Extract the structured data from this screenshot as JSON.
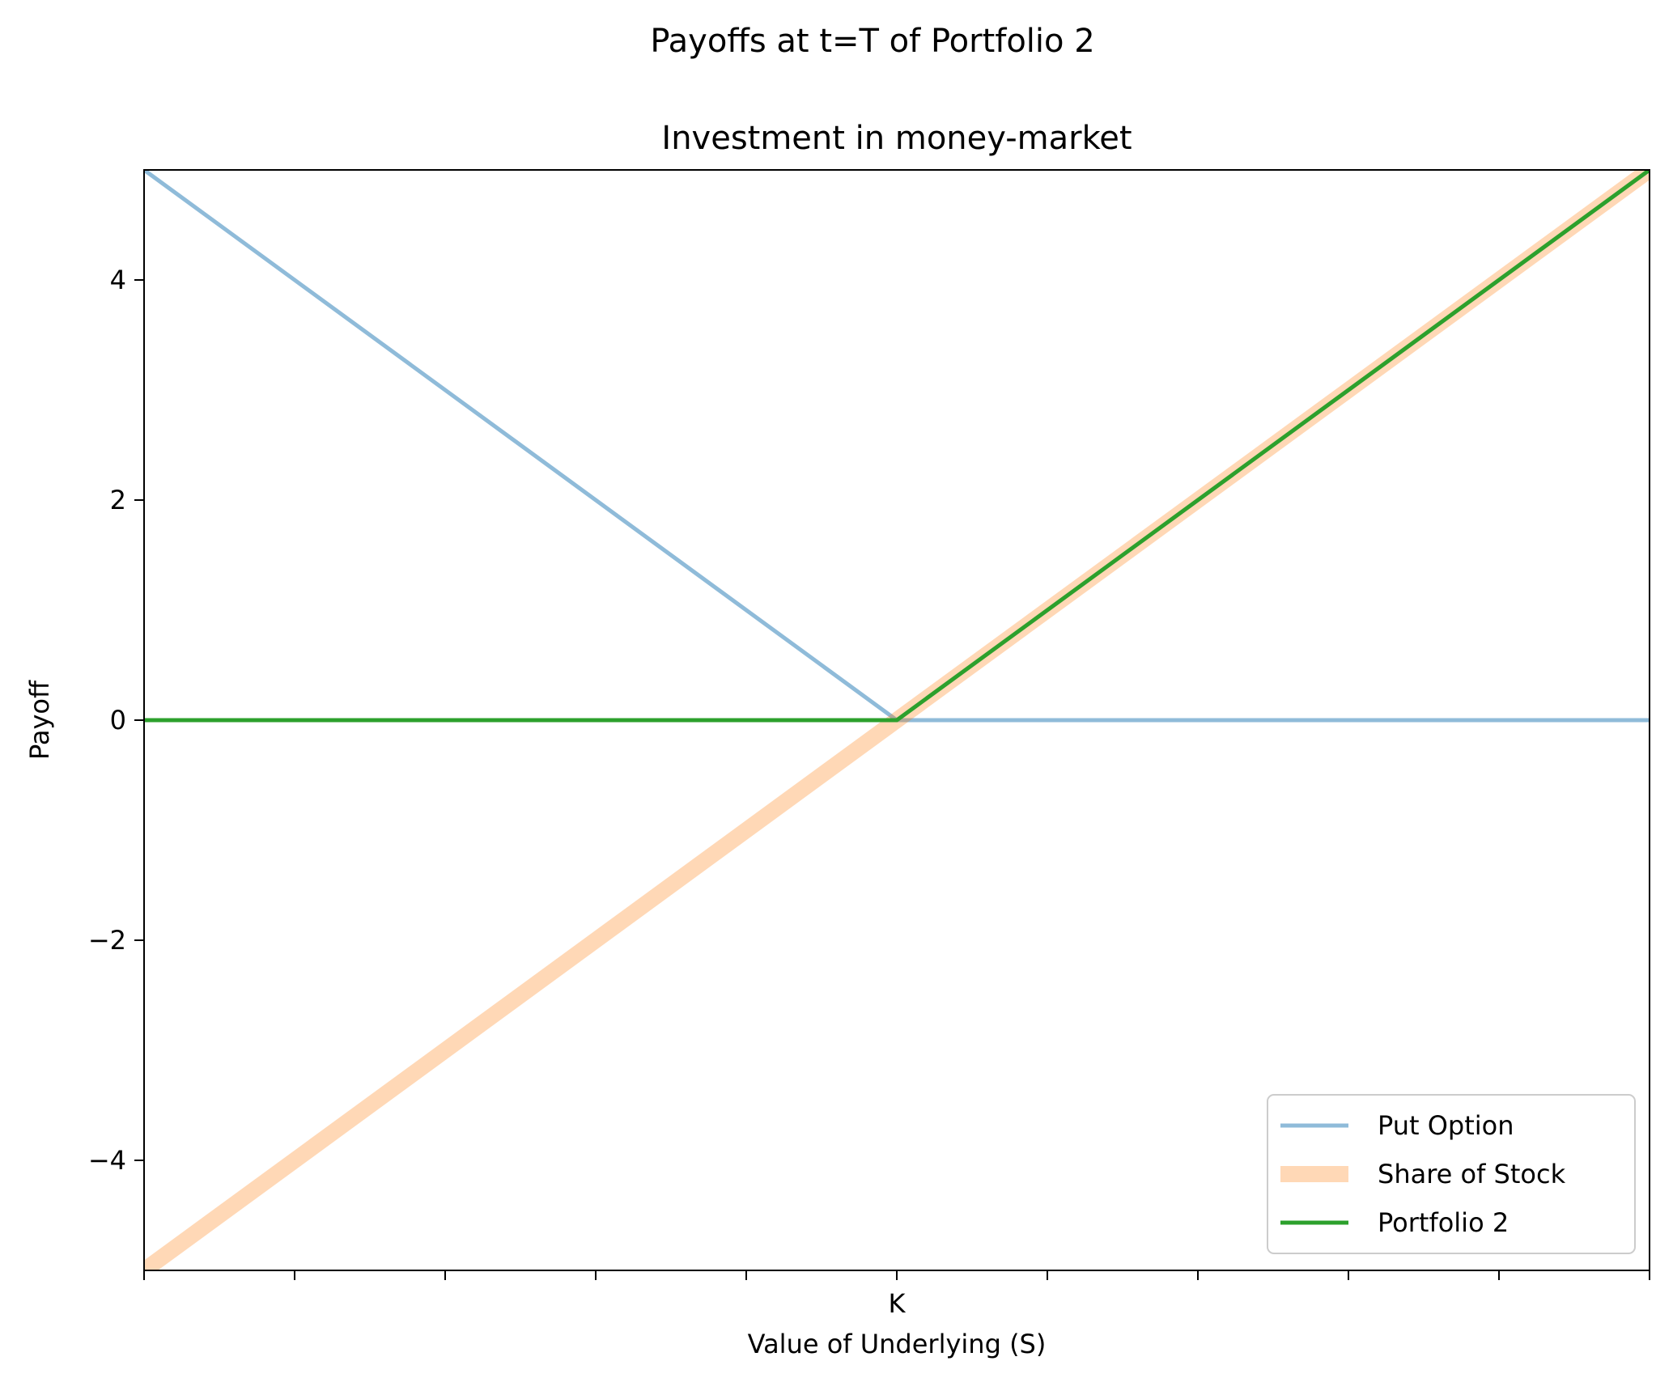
{
  "chart_data": {
    "type": "line",
    "suptitle": "Payoffs at t=T of Portfolio 2",
    "title": "Investment in money-market",
    "xlabel": "Value of Underlying (S)",
    "ylabel": "Payoff",
    "xlim": [
      -5,
      5
    ],
    "ylim": [
      -5,
      5
    ],
    "x_ticks": [
      -5,
      -4,
      -3,
      -2,
      -1,
      0,
      1,
      2,
      3,
      4,
      5
    ],
    "x_tick_labels": [
      "",
      "",
      "",
      "",
      "",
      "K",
      "",
      "",
      "",
      "",
      ""
    ],
    "y_ticks": [
      -4,
      -2,
      0,
      2,
      4
    ],
    "y_tick_labels": [
      "−4",
      "−2",
      "0",
      "2",
      "4"
    ],
    "grid": false,
    "legend_position": "lower-right",
    "series": [
      {
        "name": "Put Option",
        "color": "#1f77b4",
        "opacity": 0.5,
        "width": "thin",
        "x": [
          -5,
          0,
          5
        ],
        "y": [
          5,
          0,
          0
        ]
      },
      {
        "name": "Share of Stock",
        "color": "#ff7f0e",
        "opacity": 0.3,
        "width": "thick",
        "x": [
          -5,
          5
        ],
        "y": [
          -5,
          5
        ]
      },
      {
        "name": "Portfolio 2",
        "color": "#2ca02c",
        "opacity": 1,
        "width": "thin",
        "x": [
          -5,
          0,
          5
        ],
        "y": [
          0,
          0,
          5
        ]
      }
    ]
  }
}
